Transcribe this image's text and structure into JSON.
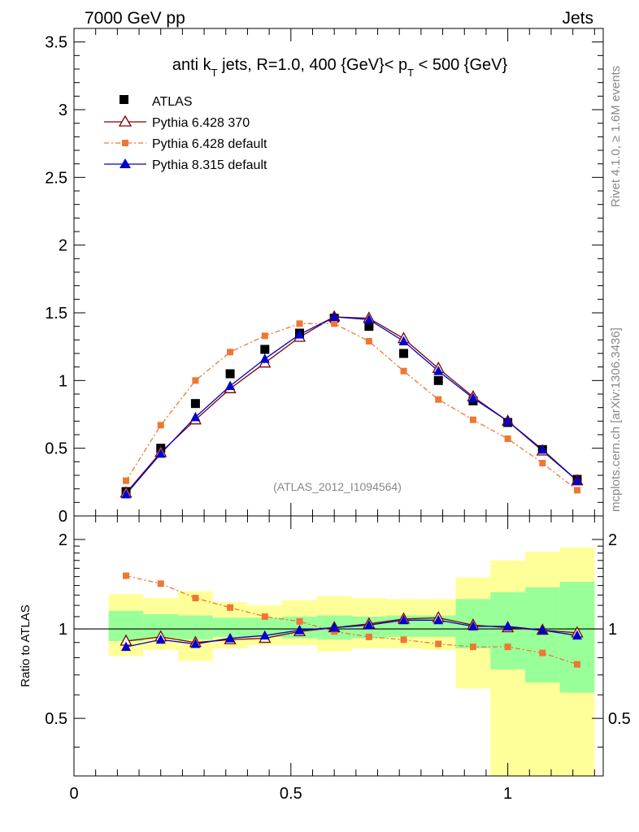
{
  "header": {
    "left": "7000 GeV pp",
    "right": "Jets"
  },
  "side_labels": {
    "rivet": "Rivet 4.1.0, ≥ 1.6M events",
    "mcplots": "mcplots.cern.ch [arXiv:1306.3436]"
  },
  "chart_data": {
    "type": "line",
    "title": "anti k_T jets, R=1.0,  400 {GeV}< p_T < 500 {GeV}",
    "title_parts": {
      "a": "anti k",
      "a_sub": "T",
      "b": " jets, R=1.0,  400 {GeV}< p",
      "b_sub": "T",
      "c": " < 500 {GeV}"
    },
    "watermark": "(ATLAS_2012_I1094564)",
    "x": [
      0.12,
      0.2,
      0.28,
      0.36,
      0.44,
      0.52,
      0.6,
      0.68,
      0.76,
      0.84,
      0.92,
      1.0,
      1.08,
      1.16
    ],
    "xlim": [
      0,
      1.22
    ],
    "ylim_main": [
      0,
      3.6
    ],
    "ylim_ratio": [
      0.32,
      2.4
    ],
    "x_ticks": [
      "0",
      "0.5",
      "1"
    ],
    "y_ticks_main": [
      "0",
      "0.5",
      "1",
      "1.5",
      "2",
      "2.5",
      "3",
      "3.5"
    ],
    "y_ticks_ratio": [
      "0.5",
      "1",
      "2"
    ],
    "ratio_ylabel": "Ratio to ATLAS",
    "series": [
      {
        "name": "ATLAS",
        "color": "#000000",
        "values": [
          0.18,
          0.5,
          0.83,
          1.05,
          1.23,
          1.35,
          1.46,
          1.4,
          1.2,
          1.0,
          0.85,
          0.69,
          0.49,
          0.27
        ],
        "ratio": [
          1,
          1,
          1,
          1,
          1,
          1,
          1,
          1,
          1,
          1,
          1,
          1,
          1,
          1
        ]
      },
      {
        "name": "Pythia 6.428 370",
        "color": "#7f0000",
        "values": [
          0.17,
          0.47,
          0.71,
          0.94,
          1.13,
          1.32,
          1.47,
          1.46,
          1.31,
          1.09,
          0.88,
          0.7,
          0.48,
          0.26
        ],
        "ratio": [
          0.91,
          0.94,
          0.9,
          0.92,
          0.93,
          0.98,
          1.01,
          1.04,
          1.08,
          1.09,
          1.03,
          1.01,
          0.99,
          0.97
        ]
      },
      {
        "name": "Pythia 6.428 default",
        "color": "#ee7733",
        "values": [
          0.26,
          0.67,
          1.0,
          1.21,
          1.33,
          1.42,
          1.42,
          1.29,
          1.07,
          0.86,
          0.71,
          0.57,
          0.39,
          0.19
        ],
        "ratio": [
          1.51,
          1.42,
          1.27,
          1.18,
          1.1,
          1.06,
          0.98,
          0.94,
          0.92,
          0.89,
          0.87,
          0.87,
          0.83,
          0.76
        ]
      },
      {
        "name": "Pythia 8.315 default",
        "color": "#0000cc",
        "values": [
          0.16,
          0.46,
          0.73,
          0.96,
          1.16,
          1.34,
          1.47,
          1.45,
          1.29,
          1.07,
          0.87,
          0.7,
          0.49,
          0.26
        ],
        "ratio": [
          0.87,
          0.92,
          0.89,
          0.93,
          0.95,
          0.99,
          1.01,
          1.03,
          1.07,
          1.07,
          1.02,
          1.02,
          0.99,
          0.95
        ]
      }
    ],
    "bands": {
      "x_edges": [
        0.08,
        0.16,
        0.24,
        0.32,
        0.4,
        0.48,
        0.56,
        0.64,
        0.72,
        0.8,
        0.88,
        0.96,
        1.04,
        1.12,
        1.2
      ],
      "green_lo": [
        0.91,
        0.93,
        0.92,
        0.94,
        0.94,
        0.93,
        0.92,
        0.93,
        0.94,
        0.94,
        0.86,
        0.73,
        0.66,
        0.61
      ],
      "green_hi": [
        1.15,
        1.12,
        1.11,
        1.09,
        1.09,
        1.1,
        1.11,
        1.1,
        1.11,
        1.11,
        1.26,
        1.33,
        1.38,
        1.44
      ],
      "yellow_lo": [
        0.81,
        0.85,
        0.78,
        0.86,
        0.88,
        0.88,
        0.84,
        0.86,
        0.86,
        0.85,
        0.63,
        0.32,
        0.32,
        0.32
      ],
      "yellow_hi": [
        1.31,
        1.27,
        1.34,
        1.23,
        1.2,
        1.25,
        1.29,
        1.27,
        1.26,
        1.26,
        1.49,
        1.7,
        1.82,
        1.88
      ]
    }
  }
}
